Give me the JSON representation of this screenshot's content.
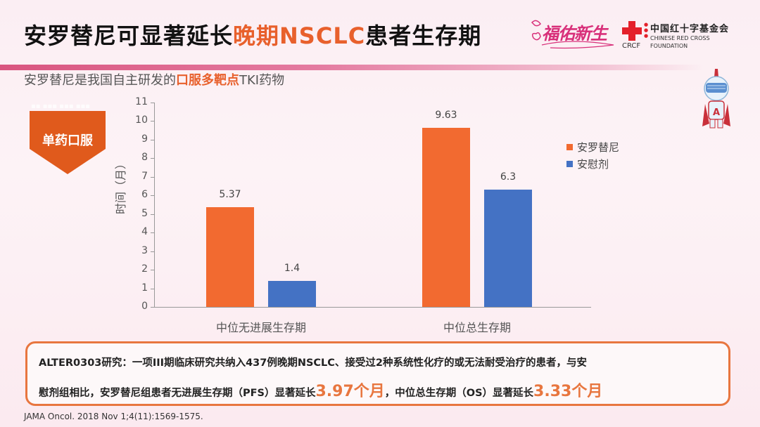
{
  "header": {
    "title_part1": "安罗替尼可显著延长",
    "title_highlight": "晚期NSCLC",
    "title_part2": "患者生存期",
    "subtitle_part1": "安罗替尼是我国自主研发的",
    "subtitle_highlight": "口服多靶点",
    "subtitle_part2": "TKI药物"
  },
  "logos": {
    "fuyou": "福佑新生",
    "crcf_abbr": "CRCF",
    "crcf_cn": "中国红十字基金会",
    "crcf_en_line1": "CHINESE RED CROSS",
    "crcf_en_line2": "FOUNDATION"
  },
  "badge": {
    "label": "单药口服"
  },
  "colors": {
    "accent": "#e8602c",
    "series_anlotinib": "#f26a30",
    "series_placebo": "#4472c4",
    "title_bar": "#d9557f"
  },
  "chart_data": {
    "type": "bar",
    "title": "",
    "xlabel": "",
    "ylabel": "时间（月）",
    "ylim": [
      0,
      11
    ],
    "yticks": [
      0,
      1,
      2,
      3,
      4,
      5,
      6,
      7,
      8,
      9,
      10,
      11
    ],
    "categories": [
      "中位无进展生存期",
      "中位总生存期"
    ],
    "series": [
      {
        "name": "安罗替尼",
        "values": [
          5.37,
          9.63
        ],
        "labels": [
          "5.37",
          "9.63"
        ],
        "color": "#f26a30"
      },
      {
        "name": "安慰剂",
        "values": [
          1.4,
          6.3
        ],
        "labels": [
          "1.4",
          "6.3"
        ],
        "color": "#4472c4"
      }
    ],
    "legend_position": "right",
    "grid": false
  },
  "note": {
    "line1": "ALTER0303研究：一项III期临床研究共纳入437例晚期NSCLC、接受过2种系统性化疗的或无法耐受治疗的患者，与安",
    "line2_part1": "慰剂组相比，安罗替尼组患者无进展生存期（PFS）显著延长",
    "line2_pfs_gain": "3.97个月",
    "line2_part2": "，中位总生存期（OS）显著延长",
    "line2_os_gain": "3.33个月"
  },
  "reference": "JAMA Oncol. 2018 Nov 1;4(11):1569-1575."
}
